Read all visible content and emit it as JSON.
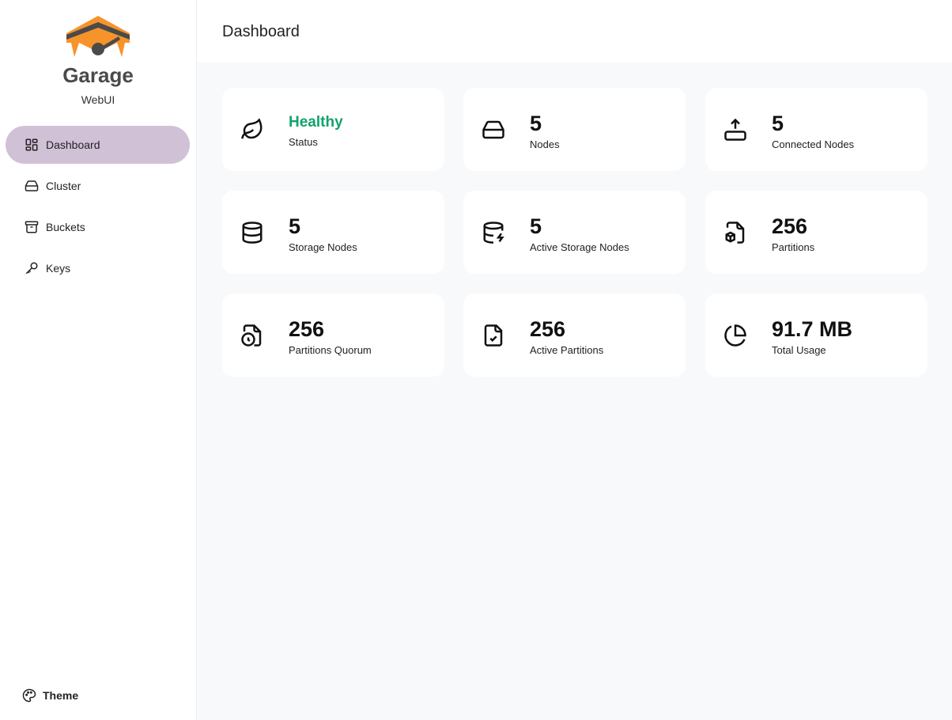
{
  "brand": {
    "name": "Garage",
    "subtitle": "WebUI",
    "color": "#f7932b"
  },
  "sidebar": {
    "items": [
      {
        "label": "Dashboard",
        "icon": "layout-dashboard-icon",
        "active": true
      },
      {
        "label": "Cluster",
        "icon": "hard-drive-icon"
      },
      {
        "label": "Buckets",
        "icon": "archive-icon"
      },
      {
        "label": "Keys",
        "icon": "key-icon"
      }
    ],
    "theme_label": "Theme"
  },
  "header": {
    "title": "Dashboard"
  },
  "cards": [
    {
      "value": "Healthy",
      "label": "Status",
      "icon": "leaf-icon",
      "color": "#12a36b"
    },
    {
      "value": "5",
      "label": "Nodes",
      "icon": "hard-drive-icon"
    },
    {
      "value": "5",
      "label": "Connected Nodes",
      "icon": "upload-drive-icon"
    },
    {
      "value": "5",
      "label": "Storage Nodes",
      "icon": "database-icon"
    },
    {
      "value": "5",
      "label": "Active Storage Nodes",
      "icon": "database-zap-icon"
    },
    {
      "value": "256",
      "label": "Partitions",
      "icon": "file-box-icon"
    },
    {
      "value": "256",
      "label": "Partitions Quorum",
      "icon": "file-clock-icon"
    },
    {
      "value": "256",
      "label": "Active Partitions",
      "icon": "file-check-icon"
    },
    {
      "value": "91.7 MB",
      "label": "Total Usage",
      "icon": "pie-chart-icon"
    }
  ]
}
